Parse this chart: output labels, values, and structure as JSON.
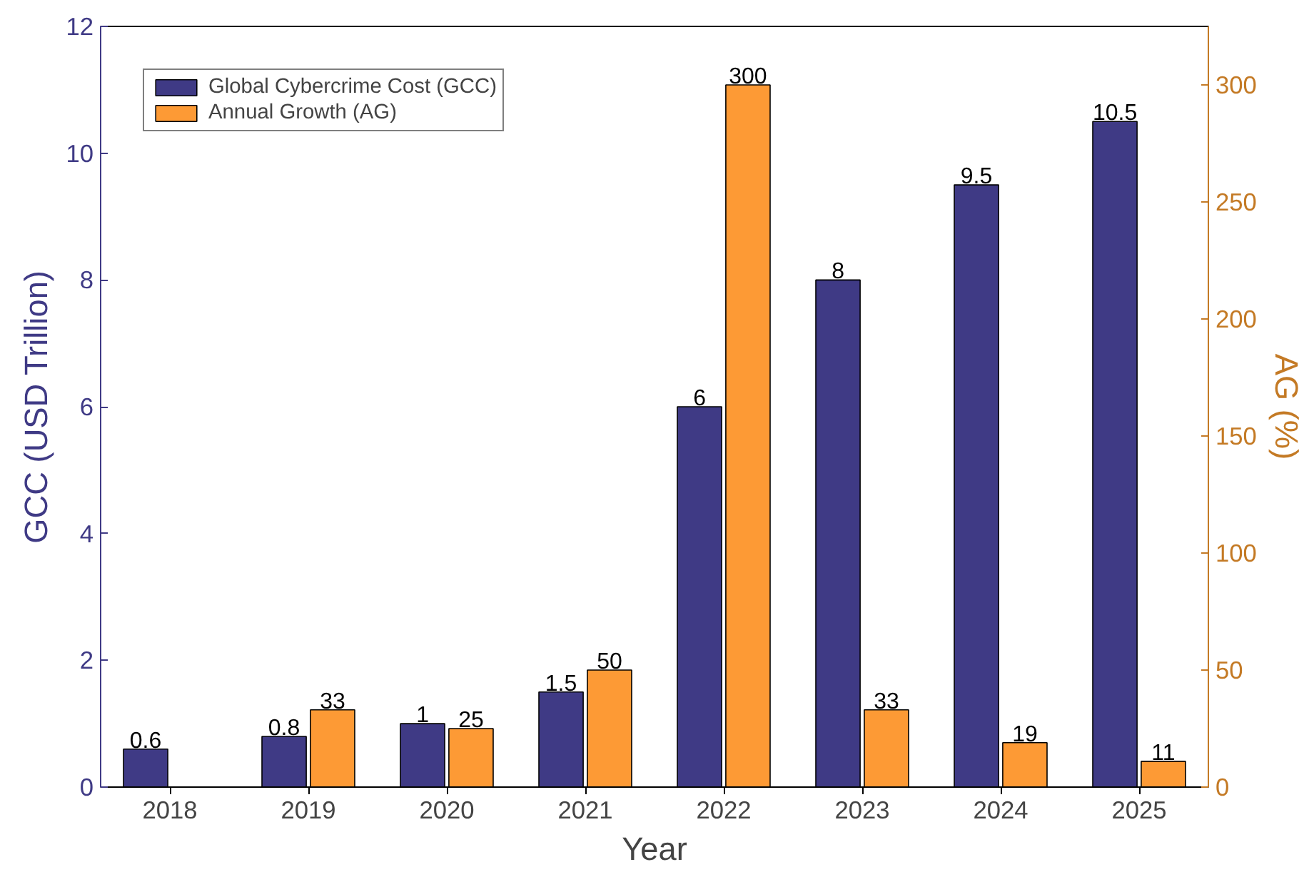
{
  "chart_data": {
    "type": "bar",
    "xlabel": "Year",
    "ylabel": "GCC (USD Trillion)",
    "y2label": "AG (%)",
    "categories": [
      "2018",
      "2019",
      "2020",
      "2021",
      "2022",
      "2023",
      "2024",
      "2025"
    ],
    "series": [
      {
        "name": "Global Cybercrime Cost (GCC)",
        "color": "#3f3a85",
        "values": [
          0.6,
          0.8,
          1,
          1.5,
          6,
          8,
          9.5,
          10.5
        ]
      },
      {
        "name": "Annual Growth (AG)",
        "color": "#fd9a35",
        "axis": "y2",
        "values": [
          null,
          33,
          25,
          50,
          300,
          33,
          19,
          11
        ]
      }
    ],
    "ylim": [
      0,
      12
    ],
    "yticks": [
      0,
      2,
      4,
      6,
      8,
      10,
      12
    ],
    "y2lim": [
      0,
      325
    ],
    "y2ticks": [
      0,
      50,
      100,
      150,
      200,
      250,
      300
    ],
    "data_labels": true,
    "legend": "top left",
    "grid": false
  }
}
